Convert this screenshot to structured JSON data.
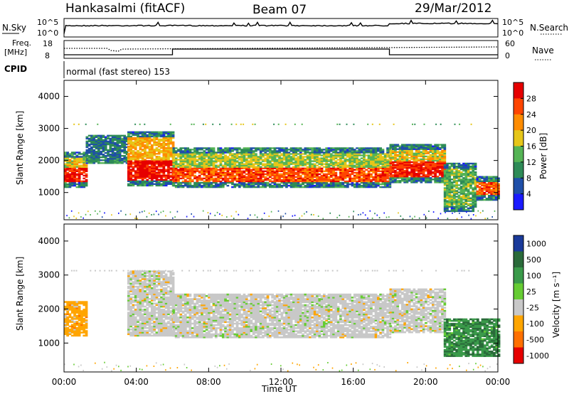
{
  "header": {
    "station": "Hankasalmi (fitACF)",
    "beam": "Beam 07",
    "date": "29/Mar/2012"
  },
  "sky_panel": {
    "left_label": "N.Sky",
    "right_label": "N.Search",
    "left_ticks": [
      "10^5",
      "10^0"
    ],
    "right_ticks": [
      "10^5",
      "10^0"
    ],
    "right_legend_style": "dotted"
  },
  "freq_panel": {
    "left_label": "Freq.",
    "left_unit": "[MHz]",
    "left_ticks": [
      "18",
      "8"
    ],
    "right_label": "Nave",
    "right_ticks": [
      "60",
      "0"
    ],
    "right_legend_style": "dotted"
  },
  "cpid_panel": {
    "label": "CPID",
    "text": "normal (fast stereo) 153"
  },
  "chart_data": [
    {
      "type": "heatmap",
      "title": "",
      "quantity": "Power",
      "ylabel": "Slant Range [km]",
      "ylim": [
        150,
        4500
      ],
      "yticks": [
        1000,
        2000,
        3000,
        4000
      ],
      "colorbar_label": "Power [dB]",
      "colorbar_ticks": [
        4,
        8,
        12,
        16,
        20,
        24,
        28
      ],
      "colorbar_range": [
        0,
        32
      ],
      "colors": [
        "#1a1aff",
        "#1f4fa8",
        "#2e8b57",
        "#55b455",
        "#e6c619",
        "#ff8c00",
        "#ff4500",
        "#e60000"
      ],
      "bands": [
        {
          "t": [
            0.0,
            1.2
          ],
          "lo": 1150,
          "hi": 2250,
          "level": 22
        },
        {
          "t": [
            1.2,
            3.5
          ],
          "lo": 1900,
          "hi": 2800,
          "level": 12
        },
        {
          "t": [
            3.5,
            6.0
          ],
          "lo": 1200,
          "hi": 2900,
          "level": 24
        },
        {
          "t": [
            6.0,
            18.0
          ],
          "lo": 1150,
          "hi": 2400,
          "level": 20
        },
        {
          "t": [
            18.0,
            21.0
          ],
          "lo": 1300,
          "hi": 2500,
          "level": 22
        },
        {
          "t": [
            21.0,
            22.8
          ],
          "lo": 400,
          "hi": 1900,
          "level": 18
        },
        {
          "t": [
            22.8,
            24.0
          ],
          "lo": 750,
          "hi": 1500,
          "level": 29
        }
      ],
      "ridges": [
        {
          "t": [
            0.0,
            1.2
          ],
          "lo": 1300,
          "hi": 1750
        },
        {
          "t": [
            3.5,
            6.0
          ],
          "lo": 1300,
          "hi": 2000
        },
        {
          "t": [
            6.0,
            18.0
          ],
          "lo": 1300,
          "hi": 1750
        },
        {
          "t": [
            18.0,
            21.0
          ],
          "lo": 1450,
          "hi": 1950
        }
      ]
    },
    {
      "type": "heatmap",
      "title": "",
      "quantity": "Velocity",
      "ylabel": "Slant Range [km]",
      "ylim": [
        150,
        4500
      ],
      "yticks": [
        1000,
        2000,
        3000,
        4000
      ],
      "xlabel": "Time UT",
      "xticks": [
        "00:00",
        "04:00",
        "08:00",
        "12:00",
        "16:00",
        "20:00",
        "00:00"
      ],
      "xlim": [
        0,
        24
      ],
      "colorbar_label": "Velocity [m s⁻¹]",
      "colorbar_ticks": [
        "1000",
        "500",
        "100",
        "25",
        "-25",
        "-100",
        "-500",
        "-1000"
      ],
      "colors": [
        "#1a3a9a",
        "#2a6a3a",
        "#3a9a4a",
        "#66cc33",
        "#c8c8c8",
        "#ffa500",
        "#ff7000",
        "#e60000"
      ],
      "bands": [
        {
          "t": [
            0.0,
            1.2
          ],
          "lo": 1200,
          "hi": 2200,
          "class": "-100"
        },
        {
          "t": [
            3.5,
            6.0
          ],
          "lo": 1200,
          "hi": 3100,
          "class": "-25"
        },
        {
          "t": [
            6.0,
            18.0
          ],
          "lo": 1150,
          "hi": 2450,
          "class": "-25"
        },
        {
          "t": [
            18.0,
            21.0
          ],
          "lo": 1300,
          "hi": 2600,
          "class": "-25"
        },
        {
          "t": [
            21.0,
            24.0
          ],
          "lo": 600,
          "hi": 1700,
          "class": "100"
        }
      ]
    }
  ]
}
